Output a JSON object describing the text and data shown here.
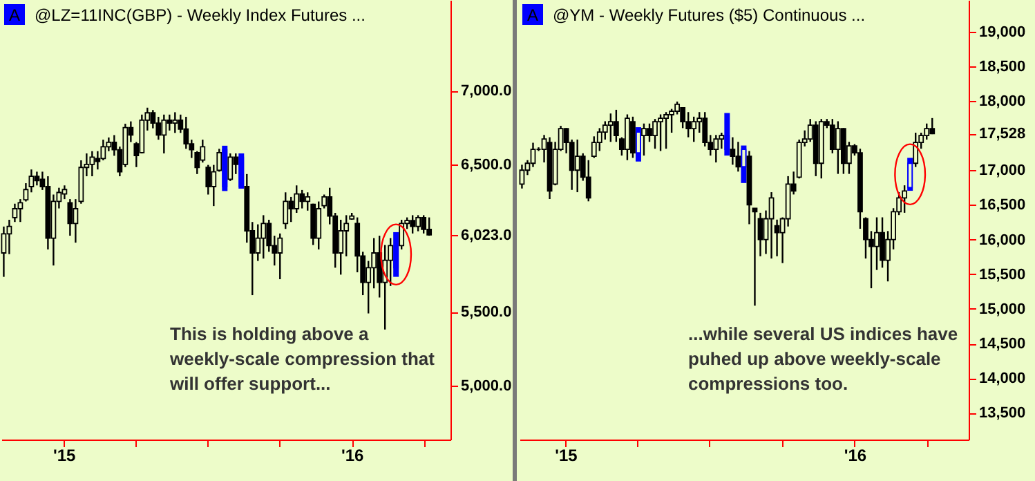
{
  "chart_data": [
    {
      "type": "candlestick",
      "title": "@LZ=11INC(GBP) - Weekly  Index Futures ...",
      "x": [
        "2014-10-17",
        "2014-10-24",
        "2014-10-31",
        "2014-11-07",
        "2014-11-14",
        "2014-11-21",
        "2014-11-28",
        "2014-12-05",
        "2014-12-12",
        "2014-12-19",
        "2014-12-26",
        "2015-01-02",
        "2015-01-09",
        "2015-01-16",
        "2015-01-23",
        "2015-01-30",
        "2015-02-06",
        "2015-02-13",
        "2015-02-20",
        "2015-02-27",
        "2015-03-06",
        "2015-03-13",
        "2015-03-20",
        "2015-03-27",
        "2015-04-03",
        "2015-04-10",
        "2015-04-17",
        "2015-04-24",
        "2015-05-01",
        "2015-05-08",
        "2015-05-15",
        "2015-05-22",
        "2015-05-29",
        "2015-06-05",
        "2015-06-12",
        "2015-06-19",
        "2015-06-26",
        "2015-07-03",
        "2015-07-10",
        "2015-07-17",
        "2015-07-24",
        "2015-07-31",
        "2015-08-07",
        "2015-08-14",
        "2015-08-21",
        "2015-08-28",
        "2015-09-04",
        "2015-09-11",
        "2015-09-18",
        "2015-09-25",
        "2015-10-02",
        "2015-10-09",
        "2015-10-16",
        "2015-10-23",
        "2015-10-30",
        "2015-11-06",
        "2015-11-13",
        "2015-11-20",
        "2015-11-27",
        "2015-12-04",
        "2015-12-11",
        "2015-12-18",
        "2015-12-25",
        "2016-01-01",
        "2016-01-08",
        "2016-01-15",
        "2016-01-22",
        "2016-01-29",
        "2016-02-05",
        "2016-02-12",
        "2016-02-19",
        "2016-02-26",
        "2016-03-04",
        "2016-03-11",
        "2016-03-18",
        "2016-03-25",
        "2016-04-01",
        "2016-04-08"
      ],
      "ohlc": [
        [
          5900,
          6079,
          5738,
          6030
        ],
        [
          6030,
          6125,
          5892,
          6080
        ],
        [
          6140,
          6234,
          6110,
          6200
        ],
        [
          6200,
          6265,
          6110,
          6240
        ],
        [
          6260,
          6373,
          6249,
          6330
        ],
        [
          6350,
          6466,
          6311,
          6420
        ],
        [
          6420,
          6451,
          6358,
          6390
        ],
        [
          6400,
          6451,
          6327,
          6350
        ],
        [
          6350,
          6420,
          5924,
          6000
        ],
        [
          6000,
          6296,
          5815,
          6250
        ],
        [
          6250,
          6342,
          6202,
          6310
        ],
        [
          6300,
          6358,
          6265,
          6330
        ],
        [
          6240,
          6265,
          6017,
          6100
        ],
        [
          6100,
          6265,
          5970,
          6200
        ],
        [
          6250,
          6528,
          6234,
          6480
        ],
        [
          6480,
          6575,
          6420,
          6500
        ],
        [
          6500,
          6590,
          6420,
          6550
        ],
        [
          6540,
          6590,
          6466,
          6520
        ],
        [
          6540,
          6668,
          6528,
          6620
        ],
        [
          6620,
          6683,
          6590,
          6650
        ],
        [
          6650,
          6699,
          6559,
          6600
        ],
        [
          6600,
          6621,
          6420,
          6450
        ],
        [
          6500,
          6776,
          6482,
          6750
        ],
        [
          6750,
          6792,
          6652,
          6700
        ],
        [
          6640,
          6652,
          6482,
          6560
        ],
        [
          6580,
          6838,
          6575,
          6800
        ],
        [
          6800,
          6885,
          6730,
          6850
        ],
        [
          6850,
          6869,
          6745,
          6780
        ],
        [
          6780,
          6823,
          6668,
          6700
        ],
        [
          6700,
          6838,
          6575,
          6800
        ],
        [
          6800,
          6838,
          6730,
          6780
        ],
        [
          6780,
          6854,
          6714,
          6800
        ],
        [
          6800,
          6838,
          6714,
          6740
        ],
        [
          6740,
          6823,
          6606,
          6640
        ],
        [
          6640,
          6668,
          6544,
          6600
        ],
        [
          6580,
          6590,
          6435,
          6480
        ],
        [
          6530,
          6668,
          6513,
          6620
        ],
        [
          6480,
          6497,
          6296,
          6350
        ],
        [
          6350,
          6497,
          6218,
          6450
        ],
        [
          6460,
          6606,
          6451,
          6580
        ],
        [
          6600,
          6627,
          6320,
          6350
        ],
        [
          6400,
          6575,
          6388,
          6550
        ],
        [
          6550,
          6575,
          6435,
          6500
        ],
        [
          6550,
          6575,
          6336,
          6350
        ],
        [
          6350,
          6435,
          5970,
          6050
        ],
        [
          6050,
          6110,
          5614,
          5900
        ],
        [
          5900,
          6094,
          5846,
          6000
        ],
        [
          6000,
          6156,
          5862,
          6100
        ],
        [
          6100,
          6125,
          5908,
          5950
        ],
        [
          5950,
          6017,
          5815,
          5900
        ],
        [
          5900,
          6032,
          5722,
          6000
        ],
        [
          6100,
          6311,
          6063,
          6250
        ],
        [
          6250,
          6280,
          6110,
          6200
        ],
        [
          6200,
          6358,
          6172,
          6300
        ],
        [
          6300,
          6327,
          6202,
          6250
        ],
        [
          6250,
          6311,
          6187,
          6280
        ],
        [
          6230,
          6234,
          5954,
          6000
        ],
        [
          6000,
          6249,
          5924,
          6200
        ],
        [
          6220,
          6296,
          6202,
          6280
        ],
        [
          6280,
          6342,
          6094,
          6150
        ],
        [
          6150,
          6172,
          5800,
          5900
        ],
        [
          5900,
          6125,
          5753,
          6050
        ],
        [
          6050,
          6156,
          5877,
          6100
        ],
        [
          6130,
          6172,
          6125,
          6150
        ],
        [
          6100,
          6141,
          5769,
          5880
        ],
        [
          5880,
          5908,
          5614,
          5700
        ],
        [
          5700,
          5846,
          5490,
          5800
        ],
        [
          5800,
          6001,
          5660,
          5900
        ],
        [
          5900,
          6017,
          5598,
          5700
        ],
        [
          5700,
          5954,
          5381,
          5850
        ],
        [
          5850,
          6001,
          5676,
          5950
        ],
        [
          5950,
          6041,
          5738,
          5800
        ],
        [
          5950,
          6125,
          5924,
          6100
        ],
        [
          6100,
          6141,
          6063,
          6120
        ],
        [
          6120,
          6156,
          6032,
          6080
        ],
        [
          6080,
          6156,
          6047,
          6140
        ],
        [
          6140,
          6156,
          6032,
          6060
        ],
        [
          6060,
          6141,
          6017,
          6023
        ]
      ],
      "colors": [
        "#000000",
        "#000000",
        "#000000",
        "#000000",
        "#000000",
        "#000000",
        "#000000",
        "#000000",
        "#000000",
        "#000000",
        "#000000",
        "#000000",
        "#000000",
        "#000000",
        "#000000",
        "#000000",
        "#000000",
        "#000000",
        "#000000",
        "#000000",
        "#000000",
        "#000000",
        "#000000",
        "#000000",
        "#000000",
        "#000000",
        "#000000",
        "#000000",
        "#000000",
        "#000000",
        "#000000",
        "#000000",
        "#000000",
        "#000000",
        "#000000",
        "#000000",
        "#000000",
        "#000000",
        "#000000",
        "#000000",
        "#0000ff",
        "#000000",
        "#000000",
        "#0000ff",
        "#000000",
        "#000000",
        "#000000",
        "#000000",
        "#000000",
        "#000000",
        "#000000",
        "#000000",
        "#000000",
        "#000000",
        "#000000",
        "#000000",
        "#000000",
        "#000000",
        "#000000",
        "#000000",
        "#000000",
        "#000000",
        "#000000",
        "#000000",
        "#000000",
        "#000000",
        "#000000",
        "#000000",
        "#000000",
        "#000000",
        "#000000",
        "#0000ff",
        "#000000",
        "#000000",
        "#000000",
        "#000000",
        "#000000",
        "#000000"
      ],
      "xlim": [
        "2014-10-14",
        "2016-05-05"
      ],
      "xticks": [
        {
          "value": "2015-01-01",
          "label": "'15"
        },
        {
          "value": "2015-04-01",
          "label": null
        },
        {
          "value": "2015-07-01",
          "label": null
        },
        {
          "value": "2015-10-01",
          "label": null
        },
        {
          "value": "2016-01-01",
          "label": "'16"
        },
        {
          "value": "2016-04-01",
          "label": null
        }
      ],
      "ylim": [
        4635,
        7615
      ],
      "yticks": [
        {
          "value": 5000,
          "label": "5,000.0"
        },
        {
          "value": 5500,
          "label": "5,500.0"
        },
        {
          "value": 6023,
          "label": "6,023.0"
        },
        {
          "value": 6500,
          "label": "6,500.0"
        },
        {
          "value": 7000,
          "label": "7,000.0"
        }
      ],
      "annotations": [
        "A",
        "This is holding above a weekly-scale compression that will offer support..."
      ]
    },
    {
      "type": "candlestick",
      "title": "@YM - Weekly  Futures ($5) Continuous ...",
      "x": [
        "2014-11-07",
        "2014-11-14",
        "2014-11-21",
        "2014-11-28",
        "2014-12-05",
        "2014-12-12",
        "2014-12-19",
        "2014-12-26",
        "2015-01-02",
        "2015-01-09",
        "2015-01-16",
        "2015-01-23",
        "2015-01-30",
        "2015-02-06",
        "2015-02-13",
        "2015-02-20",
        "2015-02-27",
        "2015-03-06",
        "2015-03-13",
        "2015-03-20",
        "2015-03-27",
        "2015-04-03",
        "2015-04-10",
        "2015-04-17",
        "2015-04-24",
        "2015-05-01",
        "2015-05-08",
        "2015-05-15",
        "2015-05-22",
        "2015-05-29",
        "2015-06-05",
        "2015-06-12",
        "2015-06-19",
        "2015-06-26",
        "2015-07-03",
        "2015-07-10",
        "2015-07-17",
        "2015-07-24",
        "2015-07-31",
        "2015-08-07",
        "2015-08-14",
        "2015-08-21",
        "2015-08-28",
        "2015-09-04",
        "2015-09-11",
        "2015-09-18",
        "2015-09-25",
        "2015-10-02",
        "2015-10-09",
        "2015-10-16",
        "2015-10-23",
        "2015-10-30",
        "2015-11-06",
        "2015-11-13",
        "2015-11-20",
        "2015-11-27",
        "2015-12-04",
        "2015-12-11",
        "2015-12-18",
        "2015-12-25",
        "2016-01-01",
        "2016-01-08",
        "2016-01-15",
        "2016-01-22",
        "2016-01-29",
        "2016-02-05",
        "2016-02-12",
        "2016-02-19",
        "2016-02-26",
        "2016-03-04",
        "2016-03-11",
        "2016-03-18",
        "2016-03-25",
        "2016-04-01",
        "2016-04-08"
      ],
      "ohlc": [
        [
          16800,
          17079,
          16736,
          17000
        ],
        [
          17000,
          17145,
          16930,
          17100
        ],
        [
          17100,
          17396,
          17046,
          17300
        ],
        [
          17300,
          17330,
          17277,
          17300
        ],
        [
          17300,
          17508,
          17112,
          17450
        ],
        [
          17400,
          17475,
          16584,
          16700
        ],
        [
          16800,
          17409,
          16782,
          17300
        ],
        [
          17300,
          17640,
          17277,
          17600
        ],
        [
          17600,
          17607,
          17244,
          17400
        ],
        [
          17400,
          17442,
          16716,
          17000
        ],
        [
          17000,
          17442,
          16683,
          17200
        ],
        [
          17200,
          17244,
          16848,
          16900
        ],
        [
          16900,
          17145,
          16551,
          16600
        ],
        [
          17200,
          17488,
          17178,
          17400
        ],
        [
          17400,
          17607,
          17277,
          17550
        ],
        [
          17550,
          17706,
          17442,
          17650
        ],
        [
          17650,
          17818,
          17409,
          17700
        ],
        [
          17700,
          17871,
          17409,
          17500
        ],
        [
          17450,
          17475,
          17211,
          17300
        ],
        [
          17300,
          17805,
          17145,
          17750
        ],
        [
          17700,
          17772,
          17178,
          17250
        ],
        [
          17250,
          17620,
          17125,
          17550
        ],
        [
          17500,
          17673,
          17211,
          17600
        ],
        [
          17600,
          17673,
          17409,
          17500
        ],
        [
          17500,
          17739,
          17310,
          17700
        ],
        [
          17700,
          17805,
          17277,
          17750
        ],
        [
          17750,
          17838,
          17310,
          17800
        ],
        [
          17800,
          17884,
          17541,
          17850
        ],
        [
          17850,
          17990,
          17805,
          17950
        ],
        [
          17900,
          17904,
          17607,
          17700
        ],
        [
          17700,
          17838,
          17475,
          17600
        ],
        [
          17600,
          17772,
          17409,
          17700
        ],
        [
          17700,
          17838,
          17541,
          17750
        ],
        [
          17750,
          17838,
          17343,
          17400
        ],
        [
          17400,
          17508,
          17211,
          17300
        ],
        [
          17300,
          17508,
          17112,
          17450
        ],
        [
          17450,
          17541,
          17310,
          17500
        ],
        [
          17500,
          17825,
          17211,
          17300
        ],
        [
          17300,
          17475,
          17079,
          17200
        ],
        [
          17200,
          17409,
          16980,
          17050
        ],
        [
          17050,
          17356,
          16815,
          17300
        ],
        [
          17200,
          17277,
          16221,
          16500
        ],
        [
          16450,
          16452,
          15046,
          16400
        ],
        [
          16300,
          16386,
          15759,
          16000
        ],
        [
          16000,
          16419,
          15792,
          16300
        ],
        [
          16300,
          16683,
          15726,
          16600
        ],
        [
          16200,
          16287,
          15759,
          16100
        ],
        [
          16100,
          16320,
          15660,
          16300
        ],
        [
          16300,
          16914,
          16188,
          16800
        ],
        [
          16800,
          16980,
          16650,
          16700
        ],
        [
          16900,
          17442,
          16881,
          17400
        ],
        [
          17400,
          17574,
          17343,
          17450
        ],
        [
          17450,
          17739,
          17409,
          17650
        ],
        [
          17650,
          17706,
          16914,
          17100
        ],
        [
          17100,
          17739,
          16881,
          17700
        ],
        [
          17700,
          17739,
          17607,
          17650
        ],
        [
          17650,
          17739,
          17244,
          17300
        ],
        [
          17300,
          17706,
          16947,
          17600
        ],
        [
          17600,
          17607,
          16947,
          17100
        ],
        [
          17100,
          17409,
          16947,
          17350
        ],
        [
          17350,
          17376,
          17211,
          17250
        ],
        [
          17250,
          17310,
          16155,
          16400
        ],
        [
          16300,
          16320,
          15726,
          16000
        ],
        [
          16000,
          16122,
          15297,
          15900
        ],
        [
          15900,
          16320,
          15561,
          16100
        ],
        [
          16100,
          16320,
          15594,
          15700
        ],
        [
          15700,
          16122,
          15396,
          16000
        ],
        [
          16000,
          16452,
          15858,
          16400
        ],
        [
          16400,
          16683,
          16353,
          16600
        ],
        [
          16600,
          16782,
          16386,
          16700
        ],
        [
          16750,
          17178,
          16703,
          17100
        ],
        [
          17100,
          17541,
          17046,
          17400
        ],
        [
          17400,
          17541,
          17310,
          17500
        ],
        [
          17500,
          17673,
          17442,
          17600
        ],
        [
          17600,
          17752,
          17520,
          17528
        ]
      ],
      "colors": [
        "#000000",
        "#000000",
        "#000000",
        "#000000",
        "#000000",
        "#000000",
        "#000000",
        "#000000",
        "#000000",
        "#000000",
        "#000000",
        "#000000",
        "#000000",
        "#000000",
        "#000000",
        "#000000",
        "#000000",
        "#000000",
        "#000000",
        "#000000",
        "#000000",
        "#0000ff",
        "#000000",
        "#000000",
        "#000000",
        "#000000",
        "#000000",
        "#000000",
        "#000000",
        "#000000",
        "#000000",
        "#000000",
        "#000000",
        "#000000",
        "#000000",
        "#000000",
        "#000000",
        "#0000ff",
        "#000000",
        "#000000",
        "#0000ff",
        "#000000",
        "#000000",
        "#000000",
        "#000000",
        "#000000",
        "#000000",
        "#000000",
        "#000000",
        "#000000",
        "#000000",
        "#000000",
        "#000000",
        "#000000",
        "#000000",
        "#000000",
        "#000000",
        "#000000",
        "#000000",
        "#000000",
        "#000000",
        "#000000",
        "#000000",
        "#000000",
        "#000000",
        "#000000",
        "#000000",
        "#000000",
        "#000000",
        "#000000",
        "#0000ff",
        "#000000",
        "#000000",
        "#000000",
        "#000000"
      ],
      "xlim": [
        "2014-11-04",
        "2016-05-24"
      ],
      "xticks": [
        {
          "value": "2015-01-01",
          "label": "'15"
        },
        {
          "value": "2015-04-01",
          "label": null
        },
        {
          "value": "2015-07-01",
          "label": null
        },
        {
          "value": "2015-10-01",
          "label": null
        },
        {
          "value": "2016-01-01",
          "label": "'16"
        },
        {
          "value": "2016-04-01",
          "label": null
        }
      ],
      "ylim": [
        13115,
        19455
      ],
      "yticks": [
        {
          "value": 13500,
          "label": "13,500"
        },
        {
          "value": 14000,
          "label": "14,000"
        },
        {
          "value": 14500,
          "label": "14,500"
        },
        {
          "value": 15000,
          "label": "15,000"
        },
        {
          "value": 15500,
          "label": "15,500"
        },
        {
          "value": 16000,
          "label": "16,000"
        },
        {
          "value": 16500,
          "label": "16,500"
        },
        {
          "value": 17000,
          "label": "17,000"
        },
        {
          "value": 17528,
          "label": "17,528"
        },
        {
          "value": 18000,
          "label": "18,000"
        },
        {
          "value": 18500,
          "label": "18,500"
        },
        {
          "value": 19000,
          "label": "19,000"
        }
      ],
      "annotations": [
        "A",
        "...while several US indices have puhed up above weekly-scale compressions too."
      ]
    }
  ]
}
